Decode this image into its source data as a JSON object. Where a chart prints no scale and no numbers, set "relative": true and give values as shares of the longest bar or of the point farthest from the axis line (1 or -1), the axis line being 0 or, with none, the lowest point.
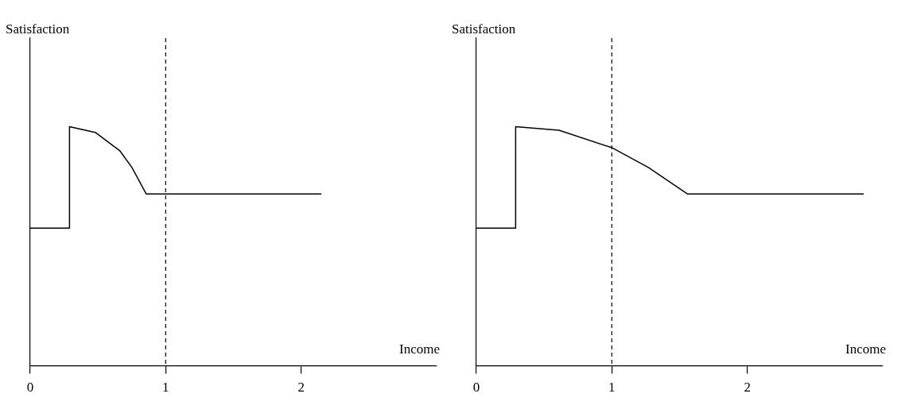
{
  "chart_data": [
    {
      "type": "line",
      "xlabel": "Income",
      "ylabel": "Satisfaction",
      "relative": true,
      "xlim": [
        0,
        3
      ],
      "xticks": [
        0,
        1,
        2
      ],
      "grid": false,
      "legend": false,
      "marker": "none",
      "line_style": "solid",
      "series": [
        {
          "color": "#000000",
          "x": [
            0,
            0.29,
            0.29,
            0.48,
            0.66,
            0.75,
            0.857,
            2.15
          ],
          "values": [
            0.576,
            0.576,
            1,
            0.976,
            0.9,
            0.83,
            0.718,
            0.718
          ]
        }
      ],
      "ref_lines": [
        {
          "axis": "x",
          "value": 1,
          "line_style": "dashed",
          "color": "#000000"
        }
      ]
    },
    {
      "type": "line",
      "xlabel": "Income",
      "ylabel": "Satisfaction",
      "relative": true,
      "xlim": [
        0,
        3
      ],
      "xticks": [
        0,
        1,
        2
      ],
      "grid": false,
      "legend": false,
      "marker": "none",
      "line_style": "solid",
      "series": [
        {
          "color": "#000000",
          "x": [
            0,
            0.29,
            0.29,
            0.61,
            1,
            1.27,
            1.56,
            2.86
          ],
          "values": [
            0.576,
            0.576,
            1,
            0.985,
            0.912,
            0.829,
            0.718,
            0.718
          ]
        }
      ],
      "ref_lines": [
        {
          "axis": "x",
          "value": 1,
          "line_style": "dashed",
          "color": "#000000"
        }
      ]
    }
  ]
}
